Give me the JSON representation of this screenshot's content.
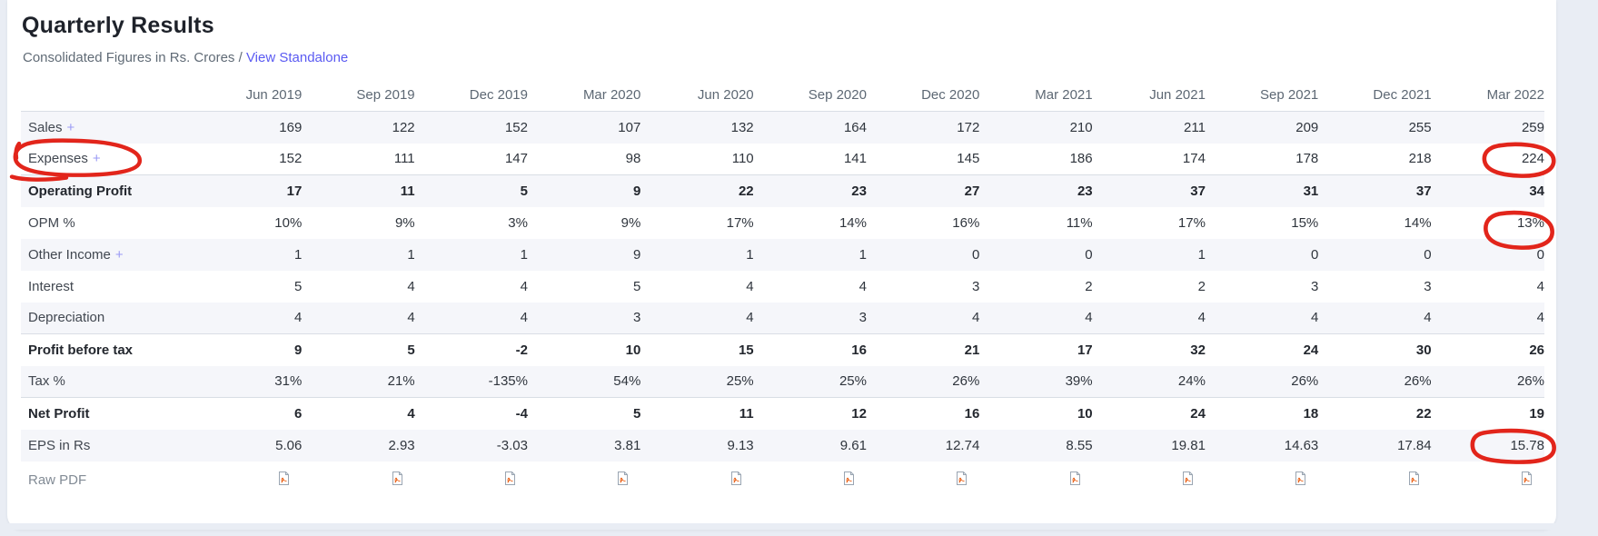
{
  "header": {
    "title": "Quarterly Results",
    "subtitle_prefix": "Consolidated Figures in Rs. Crores /",
    "standalone_link": "View Standalone"
  },
  "colors": {
    "page_bg": "#e9edf4",
    "card_bg": "#ffffff",
    "link": "#5a5af2",
    "plus": "#9a9af5",
    "stripe": "#f5f6fa",
    "border": "#d9dee5",
    "header_text": "#5d6874",
    "label_text": "#414750",
    "value_text": "#2f353d",
    "bold_text": "#23272e",
    "muted_text": "#828b95",
    "ann": "#e2251b",
    "pdf_stroke": "#9aa5b2",
    "pdf_accent": "#e8590c"
  },
  "annotations": {
    "color": "#e2251b",
    "description": "hand-drawn red circles",
    "targets": [
      {
        "row": "Expenses",
        "part": "label"
      },
      {
        "row": "Expenses",
        "column": "Mar 2022",
        "value": "224"
      },
      {
        "row": "OPM %",
        "column": "Mar 2022",
        "value": "13%"
      },
      {
        "row": "EPS in Rs",
        "column": "Mar 2022",
        "value": "15.78"
      }
    ]
  },
  "table": {
    "columns": [
      "Jun 2019",
      "Sep 2019",
      "Dec 2019",
      "Mar 2020",
      "Jun 2020",
      "Sep 2020",
      "Dec 2020",
      "Mar 2021",
      "Jun 2021",
      "Sep 2021",
      "Dec 2021",
      "Mar 2022"
    ],
    "plus_symbol": "+",
    "rows": [
      {
        "label": "Sales",
        "plus": true,
        "values": [
          "169",
          "122",
          "152",
          "107",
          "132",
          "164",
          "172",
          "210",
          "211",
          "209",
          "255",
          "259"
        ]
      },
      {
        "label": "Expenses",
        "plus": true,
        "label_annotated": true,
        "annotated_col": 11,
        "ann_style": "value",
        "values": [
          "152",
          "111",
          "147",
          "98",
          "110",
          "141",
          "145",
          "186",
          "174",
          "178",
          "218",
          "224"
        ]
      },
      {
        "label": "Operating Profit",
        "bold": true,
        "values": [
          "17",
          "11",
          "5",
          "9",
          "22",
          "23",
          "27",
          "23",
          "37",
          "31",
          "37",
          "34"
        ]
      },
      {
        "label": "OPM %",
        "annotated_col": 11,
        "ann_style": "low",
        "values": [
          "10%",
          "9%",
          "3%",
          "9%",
          "17%",
          "14%",
          "16%",
          "11%",
          "17%",
          "15%",
          "14%",
          "13%"
        ]
      },
      {
        "label": "Other Income",
        "plus": true,
        "values": [
          "1",
          "1",
          "1",
          "9",
          "1",
          "1",
          "0",
          "0",
          "1",
          "0",
          "0",
          "0"
        ]
      },
      {
        "label": "Interest",
        "values": [
          "5",
          "4",
          "4",
          "5",
          "4",
          "4",
          "3",
          "2",
          "2",
          "3",
          "3",
          "4"
        ]
      },
      {
        "label": "Depreciation",
        "values": [
          "4",
          "4",
          "4",
          "3",
          "4",
          "3",
          "4",
          "4",
          "4",
          "4",
          "4",
          "4"
        ]
      },
      {
        "label": "Profit before tax",
        "bold": true,
        "values": [
          "9",
          "5",
          "-2",
          "10",
          "15",
          "16",
          "21",
          "17",
          "32",
          "24",
          "30",
          "26"
        ]
      },
      {
        "label": "Tax %",
        "values": [
          "31%",
          "21%",
          "-135%",
          "54%",
          "25%",
          "25%",
          "26%",
          "39%",
          "24%",
          "26%",
          "26%",
          "26%"
        ]
      },
      {
        "label": "Net Profit",
        "bold": true,
        "values": [
          "6",
          "4",
          "-4",
          "5",
          "11",
          "12",
          "16",
          "10",
          "24",
          "18",
          "22",
          "19"
        ]
      },
      {
        "label": "EPS in Rs",
        "annotated_col": 11,
        "ann_style": "value-wide",
        "values": [
          "5.06",
          "2.93",
          "-3.03",
          "3.81",
          "9.13",
          "9.61",
          "12.74",
          "8.55",
          "19.81",
          "14.63",
          "17.84",
          "15.78"
        ]
      },
      {
        "label": "Raw PDF",
        "pdf_row": true
      }
    ]
  }
}
